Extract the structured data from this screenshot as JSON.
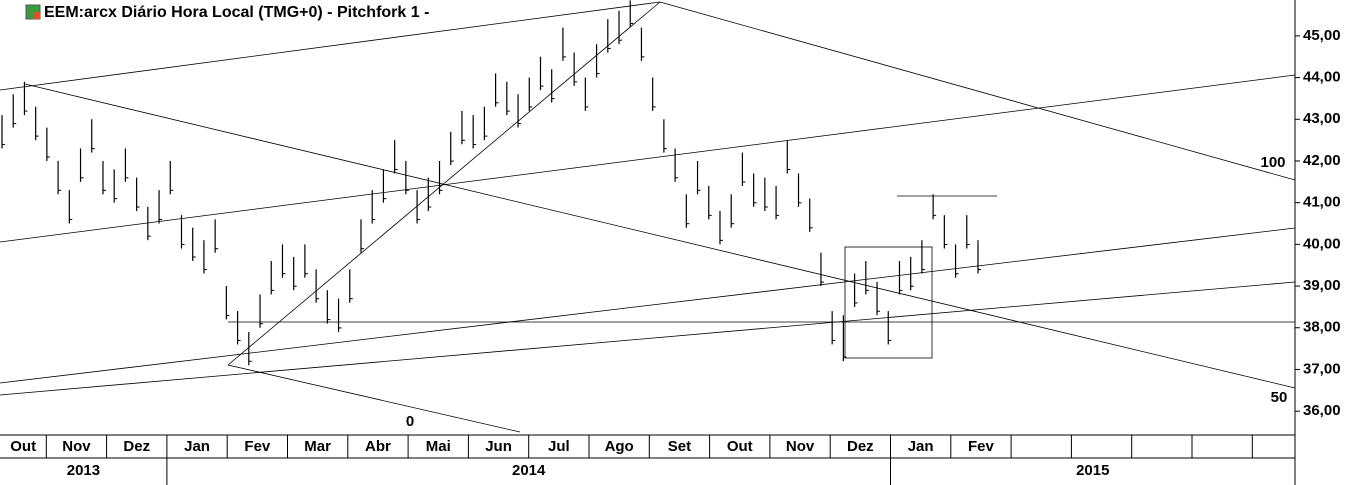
{
  "chart_data": {
    "type": "ohlc",
    "title": "EEM:arcx Diário Hora Local (TMG+0)  -  Pitchfork 1 -",
    "annotations": [
      "100",
      "50",
      "0"
    ],
    "color": "#000000",
    "months": [
      "Out",
      "Nov",
      "Dez",
      "Jan",
      "Fev",
      "Mar",
      "Abr",
      "Mai",
      "Jun",
      "Jul",
      "Ago",
      "Set",
      "Out",
      "Nov",
      "Dez",
      "Jan",
      "Fev",
      null,
      null,
      null,
      null,
      null
    ],
    "years": [
      "2013",
      "2014",
      "2015"
    ],
    "high": [
      43.1,
      43.6,
      43.9,
      43.3,
      42.8,
      42.0,
      41.3,
      42.3,
      43.0,
      42.0,
      41.8,
      42.3,
      41.6,
      40.9,
      41.3,
      42.0,
      40.7,
      40.4,
      40.1,
      40.6,
      39.0,
      38.4,
      37.9,
      38.8,
      39.6,
      40.0,
      39.7,
      40.0,
      39.4,
      38.9,
      38.7,
      39.4,
      40.6,
      41.3,
      41.8,
      42.5,
      42.0,
      41.3,
      41.6,
      42.0,
      42.7,
      43.2,
      43.1,
      43.3,
      44.1,
      43.9,
      43.6,
      44.0,
      44.5,
      44.2,
      45.2,
      44.6,
      44.0,
      44.8,
      45.4,
      45.6,
      45.85,
      45.2,
      44.0,
      43.0,
      42.3,
      41.2,
      42.0,
      41.4,
      40.8,
      41.2,
      42.2,
      41.7,
      41.6,
      41.4,
      42.5,
      41.7,
      41.1,
      39.8,
      38.4,
      38.3,
      39.3,
      39.6,
      39.1,
      38.4,
      39.6,
      39.7,
      40.1,
      41.2,
      40.7,
      40.0,
      40.7,
      40.1
    ],
    "low": [
      42.3,
      42.8,
      43.1,
      42.5,
      42.0,
      41.2,
      40.5,
      41.5,
      42.2,
      41.2,
      41.0,
      41.5,
      40.8,
      40.1,
      40.5,
      41.2,
      39.9,
      39.6,
      39.3,
      39.8,
      38.2,
      37.6,
      37.1,
      38.0,
      38.8,
      39.2,
      38.9,
      39.2,
      38.6,
      38.1,
      37.9,
      38.6,
      39.8,
      40.5,
      41.0,
      41.7,
      41.2,
      40.5,
      40.8,
      41.2,
      41.9,
      42.4,
      42.3,
      42.5,
      43.3,
      43.1,
      42.8,
      43.2,
      43.7,
      43.4,
      44.4,
      43.8,
      43.2,
      44.0,
      44.6,
      44.8,
      45.2,
      44.4,
      43.2,
      42.2,
      41.5,
      40.4,
      41.2,
      40.6,
      40.0,
      40.4,
      41.4,
      40.9,
      40.8,
      40.6,
      41.7,
      40.9,
      40.3,
      39.0,
      37.6,
      37.2,
      38.5,
      38.8,
      38.3,
      37.6,
      38.8,
      38.9,
      39.3,
      40.6,
      39.9,
      39.2,
      39.9,
      39.3
    ],
    "ylim": [
      35.5,
      45.86
    ],
    "yticks": [
      {
        "value": 36,
        "label": "36,00"
      },
      {
        "value": 37,
        "label": "37,00"
      },
      {
        "value": 38,
        "label": "38,00"
      },
      {
        "value": 39,
        "label": "39,00"
      },
      {
        "value": 40,
        "label": "40,00"
      },
      {
        "value": 41,
        "label": "41,00"
      },
      {
        "value": 42,
        "label": "42,00"
      },
      {
        "value": 43,
        "label": "43,00"
      },
      {
        "value": 44,
        "label": "44,00"
      },
      {
        "value": 45,
        "label": "45,00"
      }
    ]
  }
}
